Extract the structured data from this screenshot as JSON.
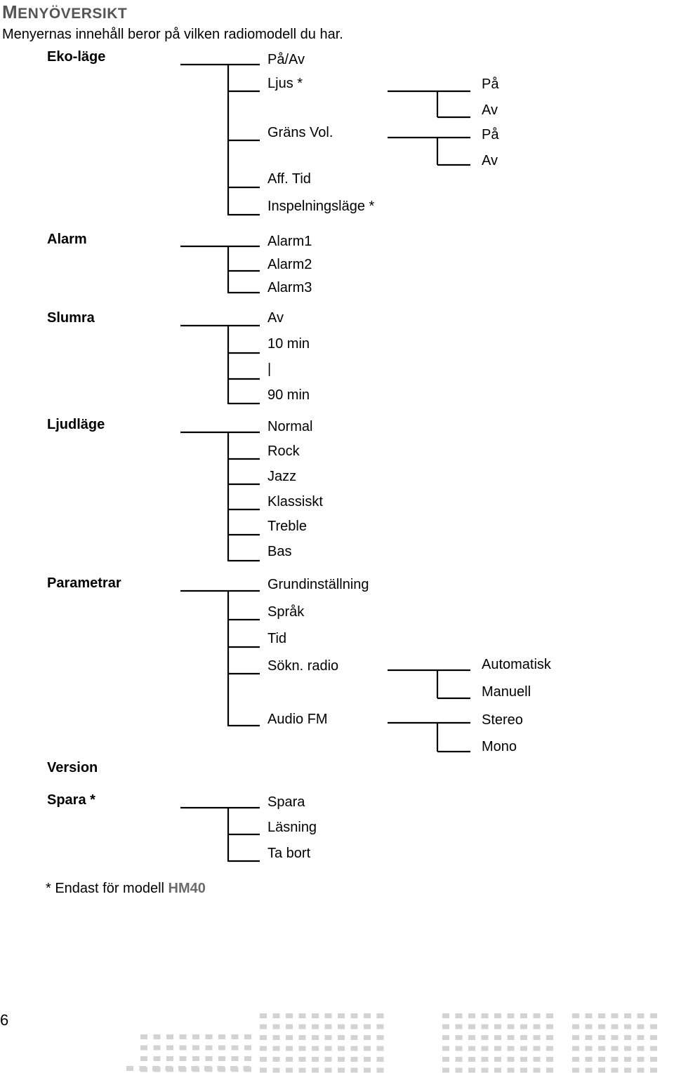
{
  "header": {
    "title_first": "M",
    "title_rest": "ENYÖVERSIKT",
    "subtitle": "Menyernas innehåll beror på vilken radiomodell du har."
  },
  "menu": {
    "eco": {
      "label": "Eko-läge",
      "items": [
        "På/Av",
        "Ljus *",
        "Gräns Vol.",
        "Aff. Tid",
        "Inspelningsläge *"
      ],
      "ljus_options": [
        "På",
        "Av"
      ],
      "grans_options": [
        "På",
        "Av"
      ]
    },
    "alarm": {
      "label": "Alarm",
      "items": [
        "Alarm1",
        "Alarm2",
        "Alarm3"
      ]
    },
    "slumra": {
      "label": "Slumra",
      "items": [
        "Av",
        "10 min",
        "|",
        "90 min"
      ]
    },
    "ljud": {
      "label": "Ljudläge",
      "items": [
        "Normal",
        "Rock",
        "Jazz",
        "Klassiskt",
        "Treble",
        "Bas"
      ]
    },
    "param": {
      "label": "Parametrar",
      "items": [
        "Grundinställning",
        "Språk",
        "Tid",
        "Sökn. radio",
        "Audio FM"
      ],
      "sokn_options": [
        "Automatisk",
        "Manuell"
      ],
      "audio_options": [
        "Stereo",
        "Mono"
      ]
    },
    "version": {
      "label": "Version"
    },
    "spara": {
      "label": "Spara *",
      "items": [
        "Spara",
        "Läsning",
        "Ta bort"
      ]
    }
  },
  "footnote": {
    "prefix": "* Endast för modell ",
    "model": "HM40"
  },
  "page_number": "6"
}
